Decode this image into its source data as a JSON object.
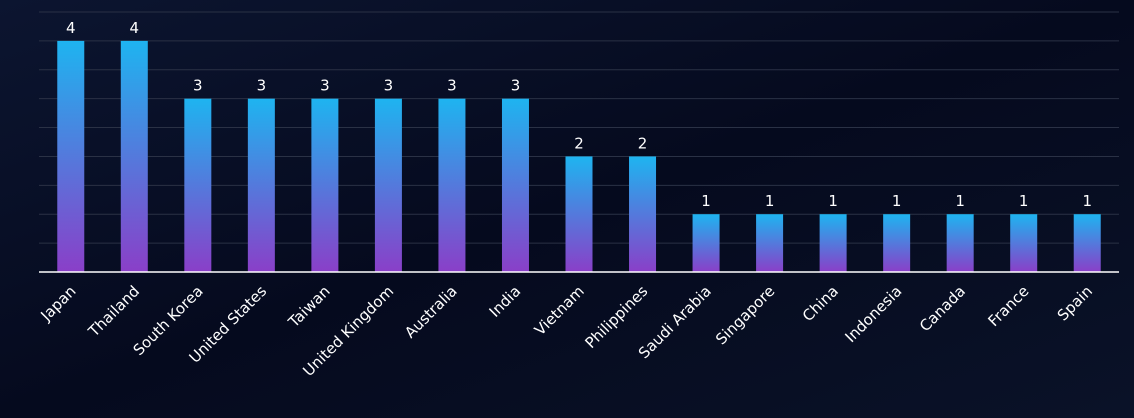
{
  "chart_data": {
    "type": "bar",
    "categories": [
      "Japan",
      "Thailand",
      "South Korea",
      "United States",
      "Taiwan",
      "United Kingdom",
      "Australia",
      "India",
      "Vietnam",
      "Philippines",
      "Saudi Arabia",
      "Singapore",
      "China",
      "Indonesia",
      "Canada",
      "France",
      "Spain"
    ],
    "values": [
      4,
      4,
      3,
      3,
      3,
      3,
      3,
      3,
      2,
      2,
      1,
      1,
      1,
      1,
      1,
      1,
      1
    ],
    "color": [
      "#1eb4f0",
      "#8a3fc8"
    ],
    "ylim": [
      0,
      4.5
    ],
    "yticks": [
      0,
      0.5,
      1,
      1.5,
      2,
      2.5,
      3,
      3.5,
      4,
      4.5
    ],
    "grid": true
  }
}
